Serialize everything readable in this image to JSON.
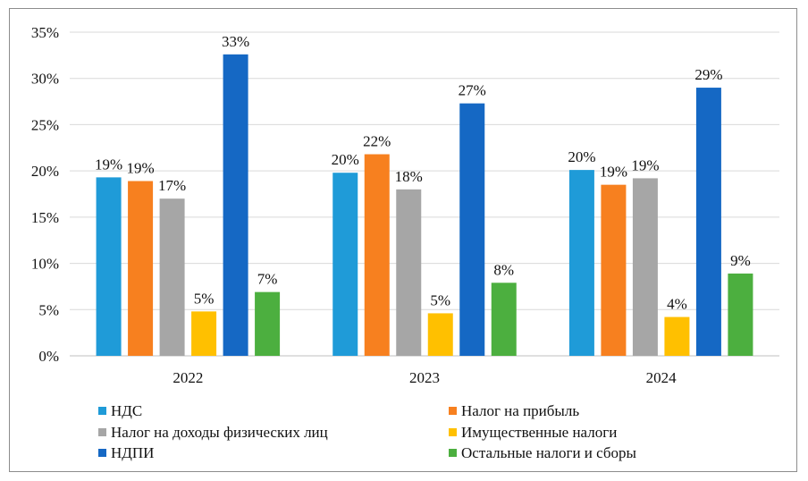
{
  "chart_data": {
    "type": "bar",
    "title": "",
    "xlabel": "",
    "ylabel": "",
    "ylim": [
      0,
      35
    ],
    "yticks": [
      "0%",
      "5%",
      "10%",
      "15%",
      "20%",
      "25%",
      "30%",
      "35%"
    ],
    "ytick_values": [
      0,
      5,
      10,
      15,
      20,
      25,
      30,
      35
    ],
    "grid": true,
    "legend_position": "bottom",
    "categories": [
      "2022",
      "2023",
      "2024"
    ],
    "series": [
      {
        "name": "НДС",
        "color": "#1f9bd8",
        "values": [
          19.3,
          19.8,
          20.1
        ],
        "labels": [
          "19%",
          "20%",
          "20%"
        ]
      },
      {
        "name": "Налог на прибыль",
        "color": "#f7801f",
        "values": [
          18.9,
          21.8,
          18.5
        ],
        "labels": [
          "19%",
          "22%",
          "19%"
        ]
      },
      {
        "name": "Налог на доходы физических лиц",
        "color": "#a6a6a6",
        "values": [
          17.0,
          18.0,
          19.2
        ],
        "labels": [
          "17%",
          "18%",
          "19%"
        ]
      },
      {
        "name": "Имущественные налоги",
        "color": "#ffc000",
        "values": [
          4.8,
          4.6,
          4.2
        ],
        "labels": [
          "5%",
          "5%",
          "4%"
        ]
      },
      {
        "name": "НДПИ",
        "color": "#1568c4",
        "values": [
          32.6,
          27.3,
          29.0
        ],
        "labels": [
          "33%",
          "27%",
          "29%"
        ]
      },
      {
        "name": "Остальные налоги и сборы",
        "color": "#4caf3f",
        "values": [
          6.9,
          7.9,
          8.9
        ],
        "labels": [
          "7%",
          "8%",
          "9%"
        ]
      }
    ]
  }
}
